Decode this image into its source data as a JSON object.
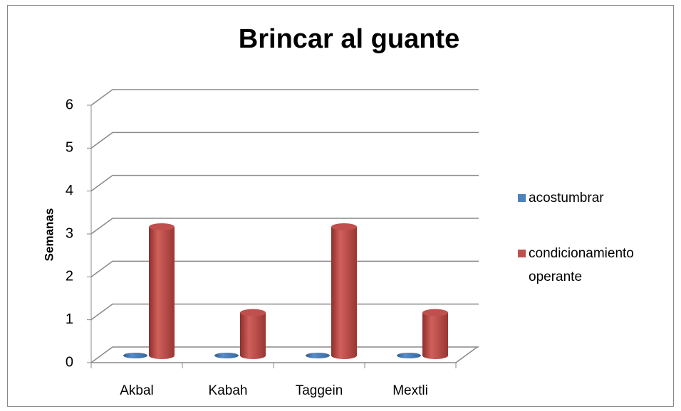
{
  "chart_data": {
    "type": "bar3d",
    "title": "Brincar al guante",
    "y_label": "Semanas",
    "categories": [
      "Akbal",
      "Kabah",
      "Taggein",
      "Mextli"
    ],
    "series": [
      {
        "name": "acostumbrar",
        "color": "#4f81bd",
        "values": [
          0,
          0,
          0,
          0
        ]
      },
      {
        "name": "condicionamiento operante",
        "color": "#c0504d",
        "values": [
          3,
          1,
          3,
          1
        ]
      }
    ],
    "ylim": [
      0,
      6
    ],
    "yticks": [
      0,
      1,
      2,
      3,
      4,
      5,
      6
    ],
    "grid": true,
    "legend": "right"
  }
}
